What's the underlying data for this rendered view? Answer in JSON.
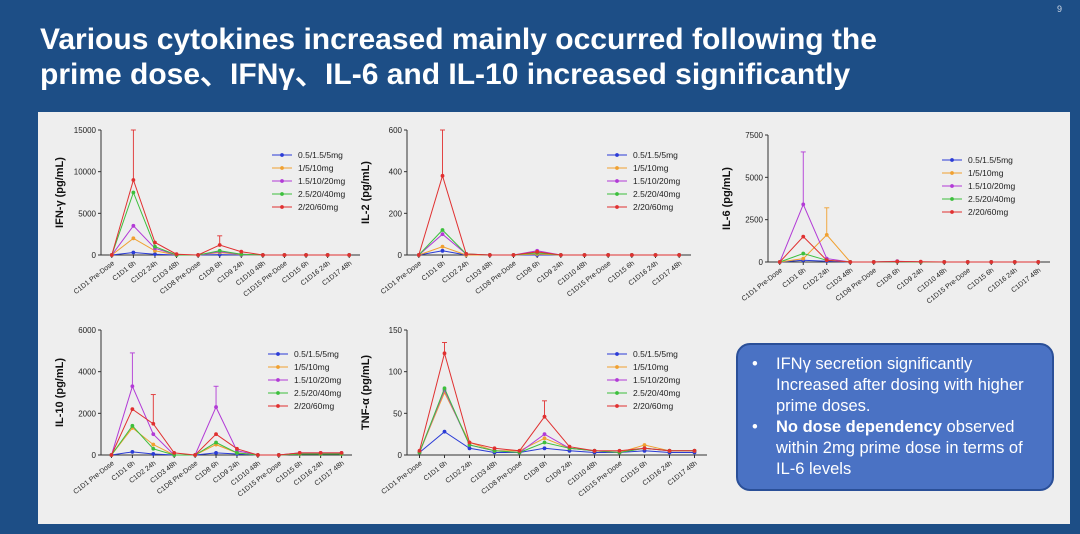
{
  "page_number": "9",
  "slide": {
    "title_line1": "Various cytokines increased mainly occurred following the",
    "title_line2": "prime dose、IFNγ、IL-6 and IL-10 increased significantly"
  },
  "note": {
    "bullet1": "IFNγ secretion significantly Increased after dosing with higher prime doses.",
    "bullet2_bold": "No dose dependency",
    "bullet2_rest": " observed within 2mg prime dose in terms of IL-6 levels",
    "bullet_symbol": "•"
  },
  "chart_data": [
    {
      "type": "line",
      "id": "ifng",
      "ylabel": "IFN-γ (pg/mL)",
      "ylim": [
        0,
        15000
      ],
      "yticks": [
        0,
        5000,
        10000,
        15000
      ],
      "categories": [
        "C1D1 Pre-Dose",
        "C1D1 6h",
        "C1D2 24h",
        "C1D3 48h",
        "C1D8 Pre-Dose",
        "C1D8 6h",
        "C1D9 24h",
        "C1D10 48h",
        "C1D15 Pre-Dose",
        "C1D15 6h",
        "C1D16 24h",
        "C1D17 48h"
      ],
      "series": [
        {
          "name": "0.5/1.5/5mg",
          "color": "#2a3bd6",
          "values": [
            0,
            300,
            100,
            0,
            0,
            50,
            0,
            0,
            0,
            0,
            0,
            0
          ]
        },
        {
          "name": "1/5/10mg",
          "color": "#f0a030",
          "values": [
            0,
            2000,
            500,
            0,
            0,
            300,
            50,
            0,
            0,
            0,
            0,
            0
          ]
        },
        {
          "name": "1.5/10/20mg",
          "color": "#b23ad6",
          "values": [
            0,
            3500,
            800,
            0,
            0,
            400,
            100,
            0,
            0,
            0,
            0,
            0
          ]
        },
        {
          "name": "2.5/20/40mg",
          "color": "#3cbf3c",
          "values": [
            0,
            7500,
            1000,
            0,
            0,
            500,
            100,
            0,
            0,
            0,
            0,
            0
          ]
        },
        {
          "name": "2/20/60mg",
          "color": "#e03030",
          "values": [
            0,
            9000,
            1500,
            100,
            0,
            1200,
            400,
            0,
            0,
            0,
            0,
            0
          ]
        }
      ],
      "error_bars": [
        {
          "series": "2/20/60mg",
          "category": "C1D1 6h",
          "upper": 15000
        },
        {
          "series": "2/20/60mg",
          "category": "C1D8 6h",
          "upper": 2300
        }
      ]
    },
    {
      "type": "line",
      "id": "il2",
      "ylabel": "IL-2 (pg/mL)",
      "ylim": [
        0,
        600
      ],
      "yticks": [
        0,
        200,
        400,
        600
      ],
      "categories": [
        "C1D1 Pre-Dose",
        "C1D1 6h",
        "C1D2 24h",
        "C1D3 48h",
        "C1D8 Pre-Dose",
        "C1D8 6h",
        "C1D9 24h",
        "C1D10 48h",
        "C1D15 Pre-Dose",
        "C1D15 6h",
        "C1D16 24h",
        "C1D17 48h"
      ],
      "series": [
        {
          "name": "0.5/1.5/5mg",
          "color": "#2a3bd6",
          "values": [
            0,
            20,
            0,
            0,
            0,
            0,
            0,
            0,
            0,
            0,
            0,
            0
          ]
        },
        {
          "name": "1/5/10mg",
          "color": "#f0a030",
          "values": [
            0,
            40,
            0,
            0,
            0,
            5,
            0,
            0,
            0,
            0,
            0,
            0
          ]
        },
        {
          "name": "1.5/10/20mg",
          "color": "#b23ad6",
          "values": [
            0,
            100,
            5,
            0,
            0,
            20,
            0,
            0,
            0,
            0,
            0,
            0
          ]
        },
        {
          "name": "2.5/20/40mg",
          "color": "#3cbf3c",
          "values": [
            0,
            120,
            5,
            0,
            0,
            10,
            0,
            0,
            0,
            0,
            0,
            0
          ]
        },
        {
          "name": "2/20/60mg",
          "color": "#e03030",
          "values": [
            0,
            380,
            5,
            0,
            0,
            15,
            0,
            0,
            0,
            0,
            0,
            0
          ]
        }
      ],
      "error_bars": [
        {
          "series": "2/20/60mg",
          "category": "C1D1 6h",
          "upper": 600
        }
      ]
    },
    {
      "type": "line",
      "id": "il6",
      "ylabel": "IL-6 (pg/mL)",
      "ylim": [
        0,
        7500
      ],
      "yticks": [
        0,
        2500,
        5000,
        7500
      ],
      "categories": [
        "C1D1 Pre-Dose",
        "C1D1 6h",
        "C1D2 24h",
        "C1D3 48h",
        "C1D8 Pre-Dose",
        "C1D8 6h",
        "C1D9 24h",
        "C1D10 48h",
        "C1D15 Pre-Dose",
        "C1D15 6h",
        "C1D16 24h",
        "C1D17 48h"
      ],
      "series": [
        {
          "name": "0.5/1.5/5mg",
          "color": "#2a3bd6",
          "values": [
            0,
            100,
            50,
            0,
            0,
            20,
            0,
            0,
            0,
            0,
            0,
            0
          ]
        },
        {
          "name": "1/5/10mg",
          "color": "#f0a030",
          "values": [
            0,
            200,
            1600,
            0,
            0,
            30,
            0,
            0,
            0,
            0,
            0,
            0
          ]
        },
        {
          "name": "1.5/10/20mg",
          "color": "#b23ad6",
          "values": [
            0,
            3400,
            200,
            0,
            0,
            50,
            0,
            0,
            0,
            0,
            0,
            0
          ]
        },
        {
          "name": "2.5/20/40mg",
          "color": "#3cbf3c",
          "values": [
            0,
            500,
            100,
            0,
            0,
            20,
            0,
            0,
            0,
            0,
            0,
            0
          ]
        },
        {
          "name": "2/20/60mg",
          "color": "#e03030",
          "values": [
            0,
            1500,
            100,
            0,
            0,
            30,
            20,
            0,
            0,
            0,
            0,
            0
          ]
        }
      ],
      "error_bars": [
        {
          "series": "1.5/10/20mg",
          "category": "C1D1 6h",
          "upper": 6500
        },
        {
          "series": "1/5/10mg",
          "category": "C1D2 24h",
          "upper": 3200
        }
      ]
    },
    {
      "type": "line",
      "id": "il10",
      "ylabel": "IL-10 (pg/mL)",
      "ylim": [
        0,
        6000
      ],
      "yticks": [
        0,
        2000,
        4000,
        6000
      ],
      "categories": [
        "C1D1 Pre-Dose",
        "C1D1 6h",
        "C1D2 24h",
        "C1D3 48h",
        "C1D8 Pre-Dose",
        "C1D8 6h",
        "C1D9 24h",
        "C1D10 48h",
        "C1D15 Pre-Dose",
        "C1D15 6h",
        "C1D16 24h",
        "C1D17 48h"
      ],
      "series": [
        {
          "name": "0.5/1.5/5mg",
          "color": "#2a3bd6",
          "values": [
            0,
            150,
            50,
            0,
            0,
            100,
            50,
            0,
            0,
            50,
            50,
            50
          ]
        },
        {
          "name": "1/5/10mg",
          "color": "#f0a030",
          "values": [
            0,
            1300,
            500,
            0,
            0,
            500,
            100,
            0,
            0,
            50,
            50,
            50
          ]
        },
        {
          "name": "1.5/10/20mg",
          "color": "#b23ad6",
          "values": [
            0,
            3300,
            1000,
            0,
            0,
            2300,
            200,
            0,
            0,
            100,
            100,
            100
          ]
        },
        {
          "name": "2.5/20/40mg",
          "color": "#3cbf3c",
          "values": [
            0,
            1400,
            300,
            0,
            0,
            600,
            100,
            0,
            0,
            50,
            50,
            50
          ]
        },
        {
          "name": "2/20/60mg",
          "color": "#e03030",
          "values": [
            0,
            2200,
            1500,
            100,
            0,
            1000,
            300,
            0,
            0,
            100,
            100,
            100
          ]
        }
      ],
      "error_bars": [
        {
          "series": "1.5/10/20mg",
          "category": "C1D1 6h",
          "upper": 4900
        },
        {
          "series": "2/20/60mg",
          "category": "C1D2 24h",
          "upper": 2900
        },
        {
          "series": "1.5/10/20mg",
          "category": "C1D8 6h",
          "upper": 3300
        }
      ]
    },
    {
      "type": "line",
      "id": "tnfa",
      "ylabel": "TNF-α (pg/mL)",
      "ylim": [
        0,
        150
      ],
      "yticks": [
        0,
        50,
        100,
        150
      ],
      "categories": [
        "C1D1 Pre-Dose",
        "C1D1 6h",
        "C1D2 24h",
        "C1D3 48h",
        "C1D8 Pre-Dose",
        "C1D8 6h",
        "C1D9 24h",
        "C1D10 48h",
        "C1D15 Pre-Dose",
        "C1D15 6h",
        "C1D16 24h",
        "C1D17 48h"
      ],
      "series": [
        {
          "name": "0.5/1.5/5mg",
          "color": "#2a3bd6",
          "values": [
            3,
            28,
            8,
            3,
            3,
            8,
            5,
            3,
            3,
            5,
            3,
            3
          ]
        },
        {
          "name": "1/5/10mg",
          "color": "#f0a030",
          "values": [
            3,
            75,
            15,
            5,
            5,
            20,
            8,
            5,
            3,
            12,
            5,
            5
          ]
        },
        {
          "name": "1.5/10/20mg",
          "color": "#b23ad6",
          "values": [
            3,
            78,
            12,
            5,
            3,
            25,
            8,
            5,
            3,
            8,
            5,
            5
          ]
        },
        {
          "name": "2.5/20/40mg",
          "color": "#3cbf3c",
          "values": [
            3,
            80,
            12,
            5,
            3,
            15,
            8,
            5,
            3,
            8,
            5,
            5
          ]
        },
        {
          "name": "2/20/60mg",
          "color": "#e03030",
          "values": [
            5,
            122,
            15,
            8,
            5,
            46,
            10,
            5,
            5,
            8,
            5,
            5
          ]
        }
      ],
      "error_bars": [
        {
          "series": "2/20/60mg",
          "category": "C1D1 6h",
          "upper": 135
        },
        {
          "series": "2/20/60mg",
          "category": "C1D8 6h",
          "upper": 65
        }
      ]
    }
  ]
}
